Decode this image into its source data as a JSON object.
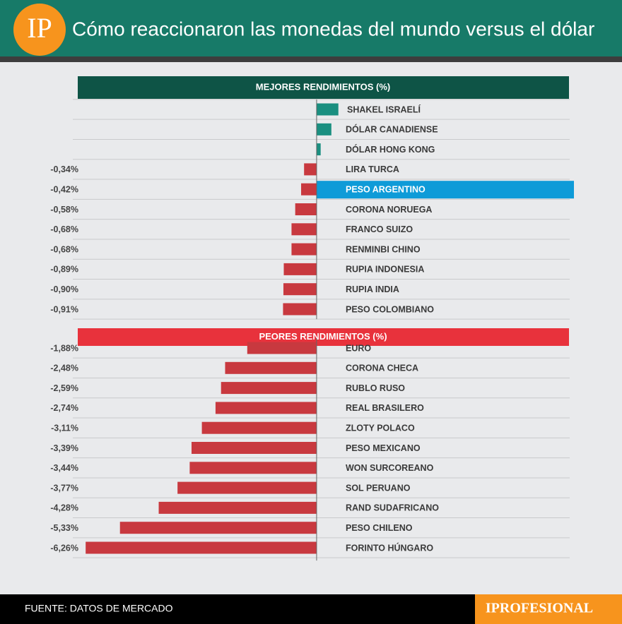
{
  "header": {
    "logo": "IP",
    "title": "Cómo reaccionaron las monedas del mundo versus el dólar"
  },
  "chart_data": [
    {
      "type": "hbar",
      "title": "MEJORES RENDIMIENTOS (%)",
      "banner_color": "#0e5446",
      "categories": [
        "SHAKEL ISRAELÍ",
        "DÓLAR CANADIENSE",
        "DÓLAR HONG KONG",
        "LIRA TURCA",
        "PESO ARGENTINO",
        "CORONA NORUEGA",
        "FRANCO SUIZO",
        "RENMINBI CHINO",
        "RUPIA INDONESIA",
        "RUPIA INDIA",
        "PESO COLOMBIANO"
      ],
      "values": [
        0.59,
        0.4,
        0.11,
        -0.34,
        -0.42,
        -0.58,
        -0.68,
        -0.68,
        -0.89,
        -0.9,
        -0.91
      ],
      "value_labels": [
        null,
        null,
        null,
        "-0,34%",
        "-0,42%",
        "-0,58%",
        "-0,68%",
        "-0,68%",
        "-0,89%",
        "-0,90%",
        "-0,91%"
      ],
      "positive_color": "#1a8f80",
      "negative_color": "#c8393f",
      "highlighted": "PESO ARGENTINO",
      "highlight_color": "#0e9bd8",
      "xlim": [
        -6.57,
        6.86
      ]
    },
    {
      "type": "hbar",
      "title": "PEORES RENDIMIENTOS (%)",
      "banner_color": "#e8323c",
      "categories": [
        "EURO",
        "CORONA CHECA",
        "RUBLO RUSO",
        "REAL BRASILERO",
        "ZLOTY POLACO",
        "PESO MEXICANO",
        "WON SURCOREANO",
        "SOL PERUANO",
        "RAND SUDAFRICANO",
        "PESO CHILENO",
        "FORINTO HÚNGARO"
      ],
      "values": [
        -1.88,
        -2.48,
        -2.59,
        -2.74,
        -3.11,
        -3.39,
        -3.44,
        -3.77,
        -4.28,
        -5.33,
        -6.26
      ],
      "value_labels": [
        "-1,88%",
        "-2,48%",
        "-2,59%",
        "-2,74%",
        "-3,11%",
        "-3,39%",
        "-3,44%",
        "-3,77%",
        "-4,28%",
        "-5,33%",
        "-6,26%"
      ],
      "positive_color": "#1a8f80",
      "negative_color": "#c8393f",
      "xlim": [
        -6.57,
        6.86
      ]
    }
  ],
  "footer": {
    "source": "FUENTE: DATOS DE MERCADO",
    "brand": "IPROFESIONAL"
  }
}
